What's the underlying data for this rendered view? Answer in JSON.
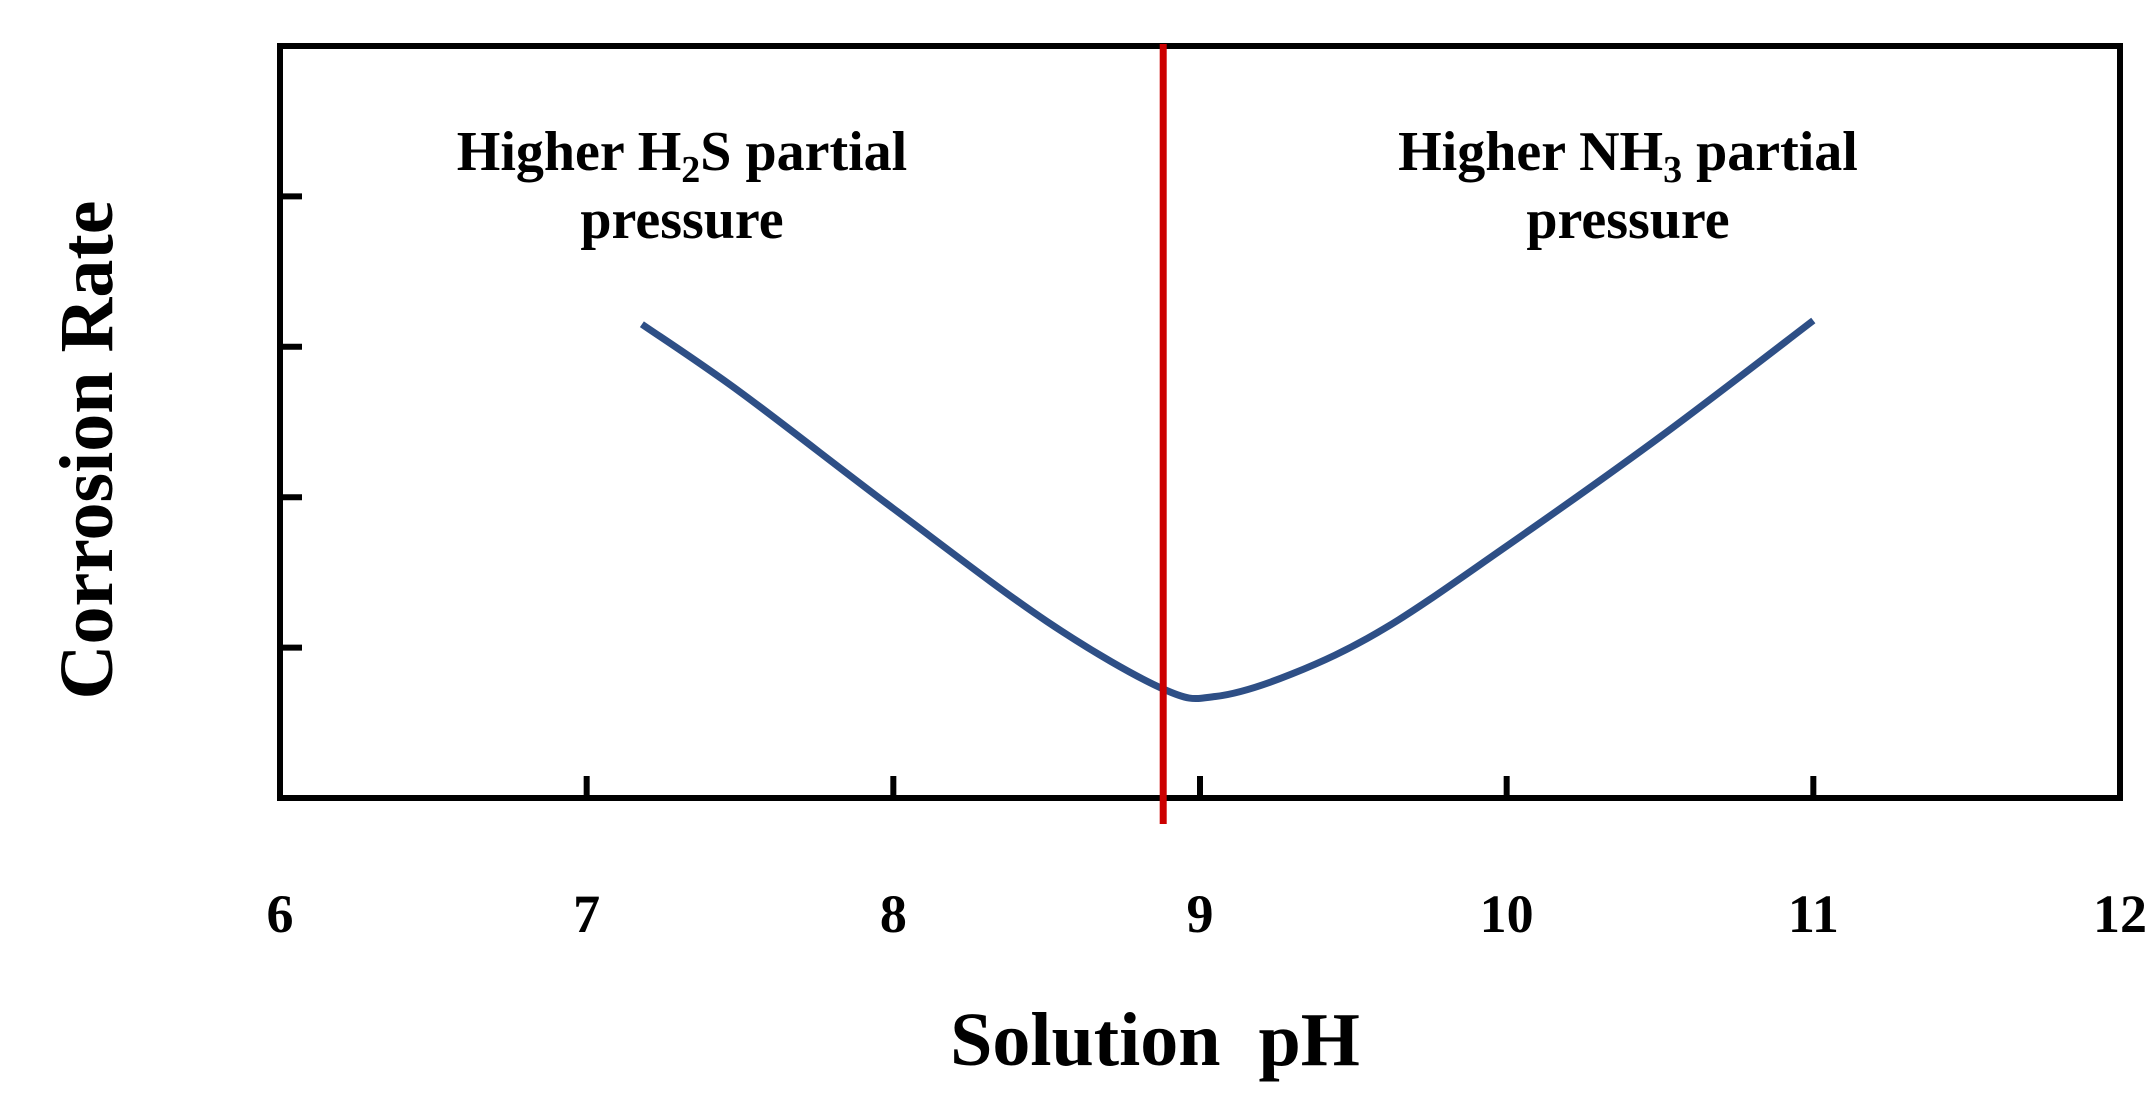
{
  "chart_data": {
    "type": "line",
    "title": "",
    "xlabel": "Solution  pH",
    "ylabel": "Corrosion Rate",
    "xlim": [
      6,
      12
    ],
    "x_ticks": [
      6,
      7,
      8,
      9,
      10,
      11,
      12
    ],
    "y_ticks_shown_without_labels": 4,
    "grid": false,
    "legend": "none",
    "series": [
      {
        "color": "#2e4f86",
        "x": [
          7.18,
          7.5,
          8.0,
          8.5,
          8.88,
          9.05,
          9.3,
          9.6,
          10.0,
          10.5,
          11.0
        ],
        "y": [
          0.63,
          0.54,
          0.385,
          0.235,
          0.145,
          0.135,
          0.165,
          0.225,
          0.335,
          0.48,
          0.635
        ]
      }
    ],
    "divider": {
      "x": 8.88,
      "color": "#cc0000"
    },
    "annotations": {
      "left": {
        "line1_prefix": "Higher H",
        "line1_sub": "2",
        "line1_suffix": "S partial",
        "line2": "pressure"
      },
      "right": {
        "line1_prefix": "Higher  NH",
        "line1_sub": "3",
        "line1_suffix": " partial",
        "line2": "pressure"
      }
    }
  }
}
